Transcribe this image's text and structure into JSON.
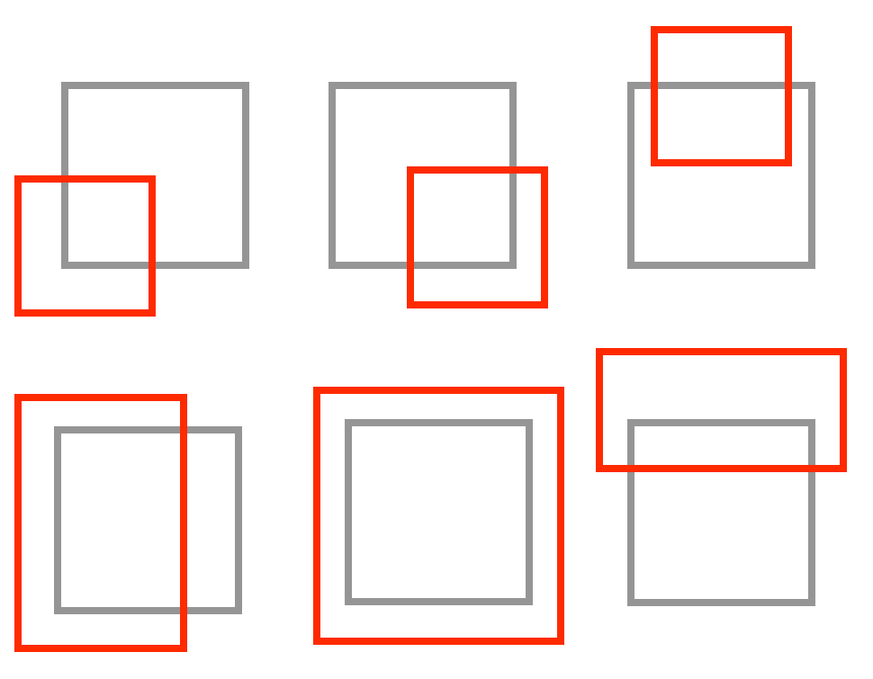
{
  "colors": {
    "background": "#ffffff",
    "reference_box": "#959595",
    "highlight_box": "#ff2a00"
  },
  "panels": [
    {
      "id": "top-left",
      "reference": "gray-square",
      "highlight": "red-square",
      "relation": "overlap-bottom-left"
    },
    {
      "id": "top-center",
      "reference": "gray-square",
      "highlight": "red-square",
      "relation": "overlap-bottom-right"
    },
    {
      "id": "top-right",
      "reference": "gray-square",
      "highlight": "red-square",
      "relation": "overlap-top"
    },
    {
      "id": "bottom-left",
      "reference": "gray-square",
      "highlight": "red-rectangle",
      "relation": "overlap-left"
    },
    {
      "id": "bottom-center",
      "reference": "gray-square",
      "highlight": "red-square",
      "relation": "contains"
    },
    {
      "id": "bottom-right",
      "reference": "gray-square",
      "highlight": "red-rectangle",
      "relation": "overlap-top-wide"
    }
  ]
}
